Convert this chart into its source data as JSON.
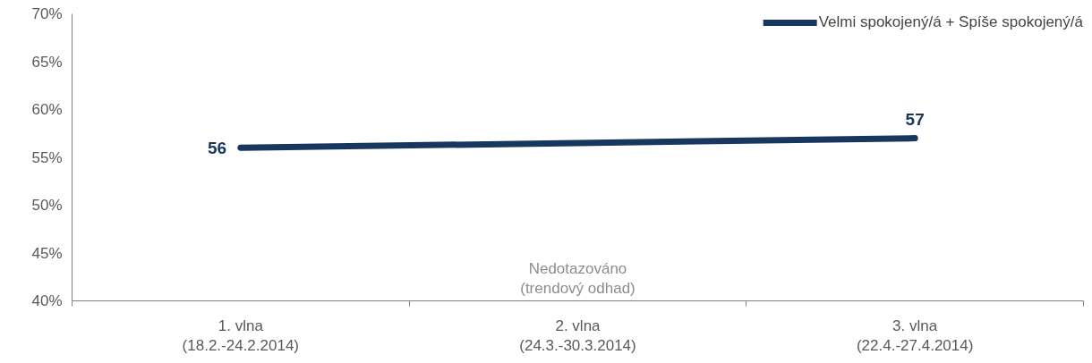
{
  "chart_data": {
    "type": "line",
    "categories": [
      "1. vlna\n(18.2.-24.2.2014)",
      "2. vlna\n(24.3.-30.3.2014)",
      "3. vlna\n(22.4.-27.4.2014)"
    ],
    "series": [
      {
        "name": "Velmi spokojený/á + Spíše spokojený/á",
        "color": "#17375e",
        "values": [
          56,
          56.5,
          57
        ],
        "value_labels": [
          "56",
          null,
          "57"
        ]
      }
    ],
    "ylim": [
      40,
      70
    ],
    "yticks": [
      {
        "value": 40,
        "label": "40%"
      },
      {
        "value": 45,
        "label": "45%"
      },
      {
        "value": 50,
        "label": "50%"
      },
      {
        "value": 55,
        "label": "55%"
      },
      {
        "value": 60,
        "label": "60%"
      },
      {
        "value": 65,
        "label": "65%"
      },
      {
        "value": 70,
        "label": "70%"
      }
    ],
    "annotations": [
      "Nedotazováno\n(trendový odhad)"
    ],
    "grid": false,
    "legend": "top right",
    "marker": "none",
    "line_style": "solid"
  }
}
